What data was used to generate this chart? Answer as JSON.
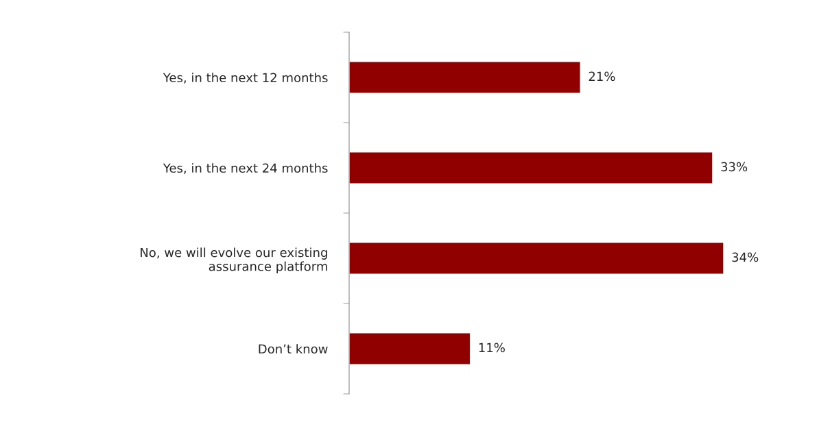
{
  "chart_data": {
    "type": "bar",
    "orientation": "horizontal",
    "relative": false,
    "categories": [
      "Yes, in the next 12 months",
      "Yes, in the next 24 months",
      "No, we will evolve our existing\nassurance platform",
      "Don’t know"
    ],
    "values": [
      21,
      33,
      34,
      11
    ],
    "value_labels": [
      "21%",
      "33%",
      "34%",
      "11%"
    ],
    "color": "#900000",
    "grid": false,
    "legend": false
  }
}
